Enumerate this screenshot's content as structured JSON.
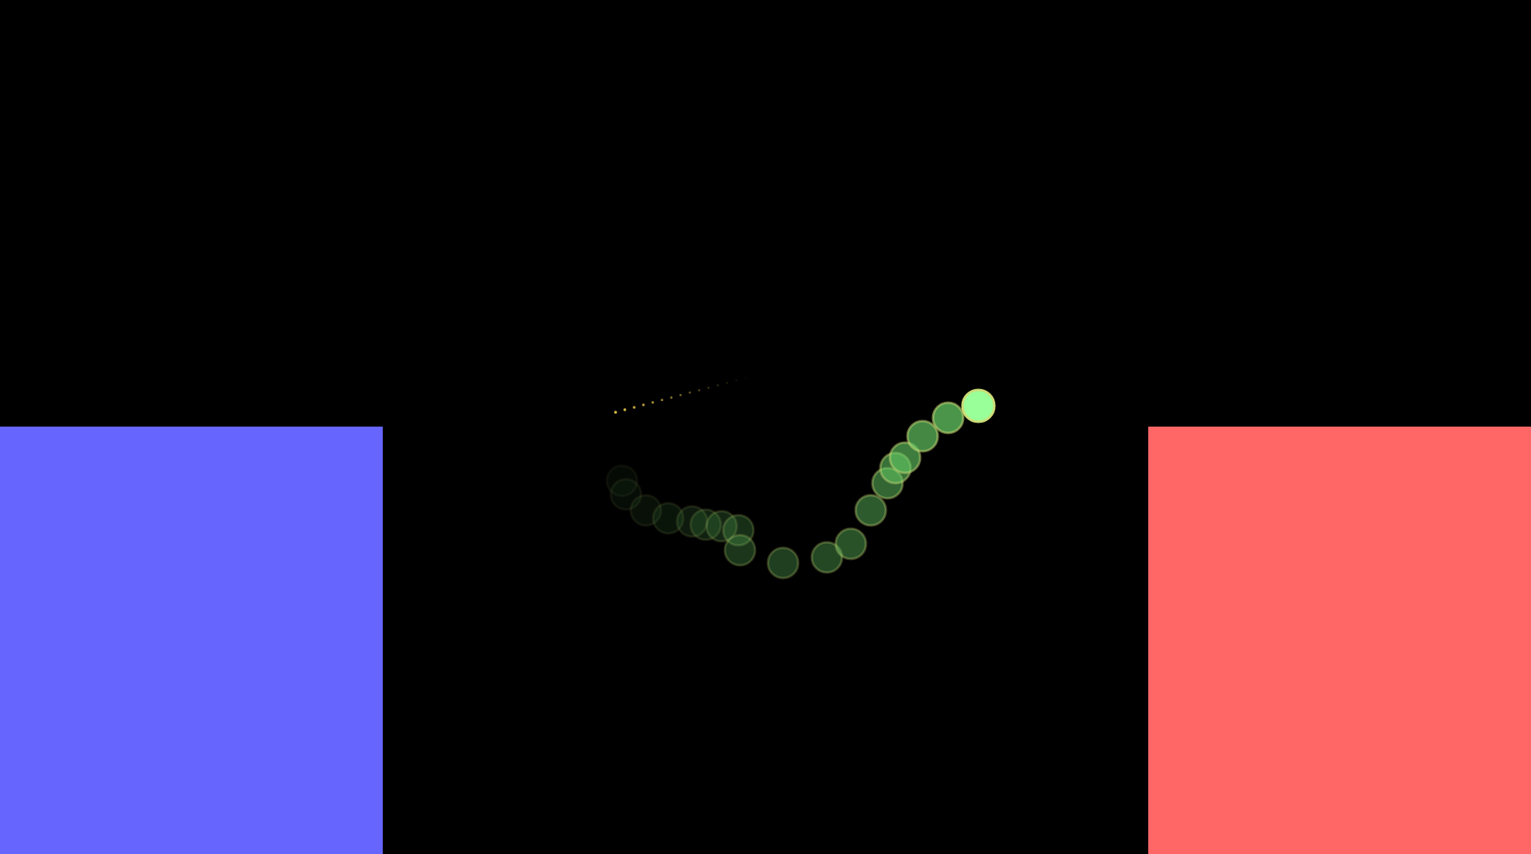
{
  "scene": {
    "background_color": "#000000",
    "left_block": {
      "color": "#6666ff"
    },
    "right_block": {
      "color": "#ff6666"
    },
    "ball": {
      "fill_color": "#99ff99",
      "ring_color": "#ccdd77",
      "trail_fill_color": "#66cc66",
      "trail_length": 18
    },
    "sparks": {
      "color": "#ffdd55",
      "count": 15
    }
  }
}
